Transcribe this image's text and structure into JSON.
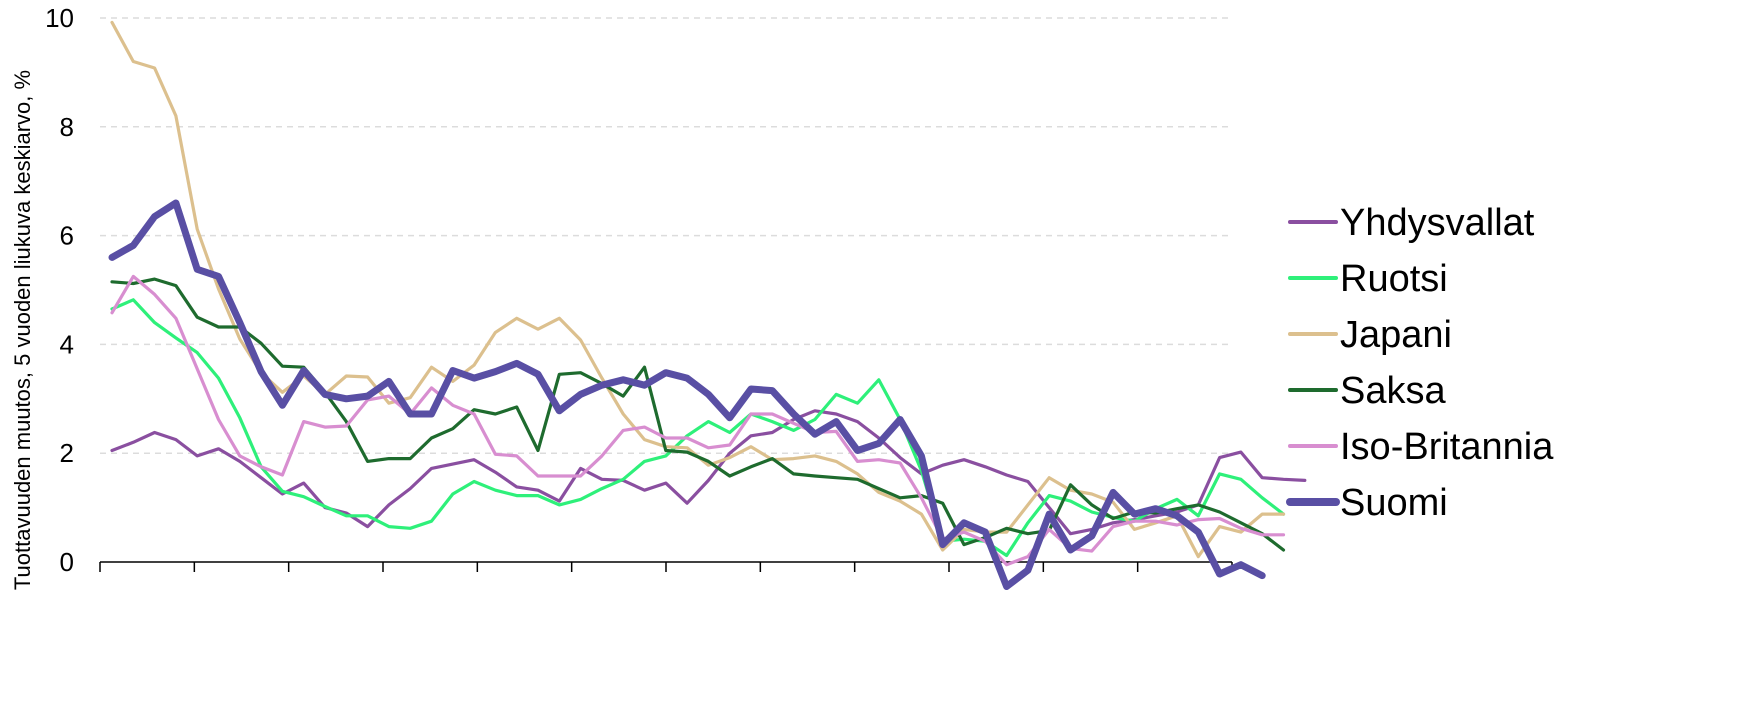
{
  "chart_data": {
    "type": "line",
    "title": "",
    "xlabel": "",
    "ylabel": "Tuottavuuden muutos, 5 vuoden liukuva keskiarvo, %",
    "ylim": [
      0,
      10
    ],
    "yticks": [
      "0",
      "2",
      "4",
      "6",
      "8",
      "10"
    ],
    "x_count": 60,
    "x_tick_count": 12,
    "grid": "horizontal dashed",
    "legend_position": "right",
    "series": [
      {
        "name": "Yhdysvallat",
        "color": "#8a4fa0",
        "emphasis": false,
        "values": [
          2.05,
          2.2,
          2.38,
          2.25,
          1.95,
          2.08,
          1.85,
          1.55,
          1.25,
          1.45,
          1.0,
          0.9,
          0.65,
          1.05,
          1.35,
          1.72,
          1.8,
          1.88,
          1.65,
          1.38,
          1.32,
          1.12,
          1.72,
          1.52,
          1.5,
          1.32,
          1.45,
          1.08,
          1.5,
          2.0,
          2.32,
          2.38,
          2.62,
          2.78,
          2.72,
          2.58,
          2.28,
          1.92,
          1.62,
          1.78,
          1.88,
          1.75,
          1.6,
          1.48,
          1.0,
          0.52,
          0.6,
          0.72,
          0.78,
          0.85,
          0.92,
          1.05,
          1.92,
          2.02,
          1.55,
          1.52,
          1.5,
          null,
          null,
          null
        ]
      },
      {
        "name": "Ruotsi",
        "color": "#2ef07a",
        "emphasis": false,
        "values": [
          4.65,
          4.82,
          4.4,
          4.12,
          3.85,
          3.38,
          2.65,
          1.75,
          1.3,
          1.2,
          1.02,
          0.85,
          0.85,
          0.65,
          0.62,
          0.75,
          1.25,
          1.48,
          1.32,
          1.22,
          1.22,
          1.05,
          1.15,
          1.35,
          1.52,
          1.85,
          1.95,
          2.32,
          2.58,
          2.38,
          2.72,
          2.58,
          2.42,
          2.62,
          3.08,
          2.92,
          3.35,
          2.62,
          1.68,
          0.38,
          0.42,
          0.38,
          0.12,
          0.72,
          1.22,
          1.12,
          0.92,
          0.82,
          0.75,
          0.98,
          1.15,
          0.85,
          1.62,
          1.52,
          1.18,
          0.88,
          null,
          null,
          null,
          null
        ]
      },
      {
        "name": "Japani",
        "color": "#dcc08e",
        "emphasis": false,
        "values": [
          9.92,
          9.2,
          9.08,
          8.2,
          6.12,
          5.02,
          4.1,
          3.48,
          3.12,
          3.42,
          3.08,
          3.42,
          3.4,
          2.92,
          3.02,
          3.58,
          3.32,
          3.62,
          4.22,
          4.48,
          4.28,
          4.48,
          4.08,
          3.38,
          2.72,
          2.25,
          2.12,
          2.1,
          1.78,
          1.92,
          2.12,
          1.88,
          1.9,
          1.95,
          1.85,
          1.62,
          1.28,
          1.12,
          0.88,
          0.22,
          0.6,
          0.55,
          0.55,
          1.05,
          1.55,
          1.32,
          1.25,
          1.1,
          0.6,
          0.72,
          0.85,
          0.1,
          0.65,
          0.55,
          0.88,
          0.88,
          null,
          null,
          null,
          null
        ]
      },
      {
        "name": "Saksa",
        "color": "#1e6b2e",
        "emphasis": false,
        "values": [
          5.15,
          5.12,
          5.2,
          5.08,
          4.5,
          4.32,
          4.32,
          4.02,
          3.6,
          3.58,
          3.12,
          2.58,
          1.85,
          1.9,
          1.9,
          2.28,
          2.45,
          2.8,
          2.72,
          2.85,
          2.05,
          3.45,
          3.48,
          3.28,
          3.05,
          3.58,
          2.05,
          2.02,
          1.85,
          1.58,
          1.75,
          1.9,
          1.62,
          1.58,
          1.55,
          1.52,
          1.35,
          1.18,
          1.22,
          1.08,
          0.32,
          0.45,
          0.62,
          0.52,
          0.58,
          1.42,
          1.05,
          0.8,
          0.92,
          0.9,
          0.98,
          1.05,
          0.92,
          0.72,
          0.52,
          0.22,
          null,
          null,
          null,
          null
        ]
      },
      {
        "name": "Iso-Britannia",
        "color": "#d88ed0",
        "emphasis": false,
        "values": [
          4.58,
          5.25,
          4.92,
          4.48,
          3.55,
          2.62,
          1.95,
          1.75,
          1.6,
          2.58,
          2.48,
          2.5,
          2.98,
          3.05,
          2.72,
          3.2,
          2.88,
          2.72,
          1.98,
          1.95,
          1.58,
          1.58,
          1.58,
          1.95,
          2.42,
          2.48,
          2.28,
          2.28,
          2.1,
          2.15,
          2.72,
          2.72,
          2.55,
          2.38,
          2.4,
          1.85,
          1.88,
          1.82,
          1.18,
          0.42,
          0.55,
          0.38,
          -0.05,
          0.1,
          0.6,
          0.25,
          0.2,
          0.65,
          0.75,
          0.75,
          0.68,
          0.78,
          0.8,
          0.62,
          0.5,
          0.5,
          null,
          null,
          null,
          null
        ]
      },
      {
        "name": "Suomi",
        "color": "#594fa4",
        "emphasis": true,
        "values": [
          5.6,
          5.82,
          6.35,
          6.6,
          5.38,
          5.25,
          4.4,
          3.5,
          2.88,
          3.52,
          3.08,
          3.0,
          3.05,
          3.32,
          2.72,
          2.72,
          3.52,
          3.38,
          3.5,
          3.65,
          3.45,
          2.78,
          3.08,
          3.25,
          3.35,
          3.25,
          3.48,
          3.38,
          3.08,
          2.65,
          3.18,
          3.15,
          2.72,
          2.35,
          2.58,
          2.05,
          2.18,
          2.62,
          1.95,
          0.32,
          0.72,
          0.55,
          -0.45,
          -0.15,
          0.88,
          0.22,
          0.48,
          1.28,
          0.88,
          0.98,
          0.85,
          0.55,
          -0.22,
          -0.05,
          -0.25,
          null,
          null,
          null,
          null,
          null
        ]
      }
    ]
  }
}
